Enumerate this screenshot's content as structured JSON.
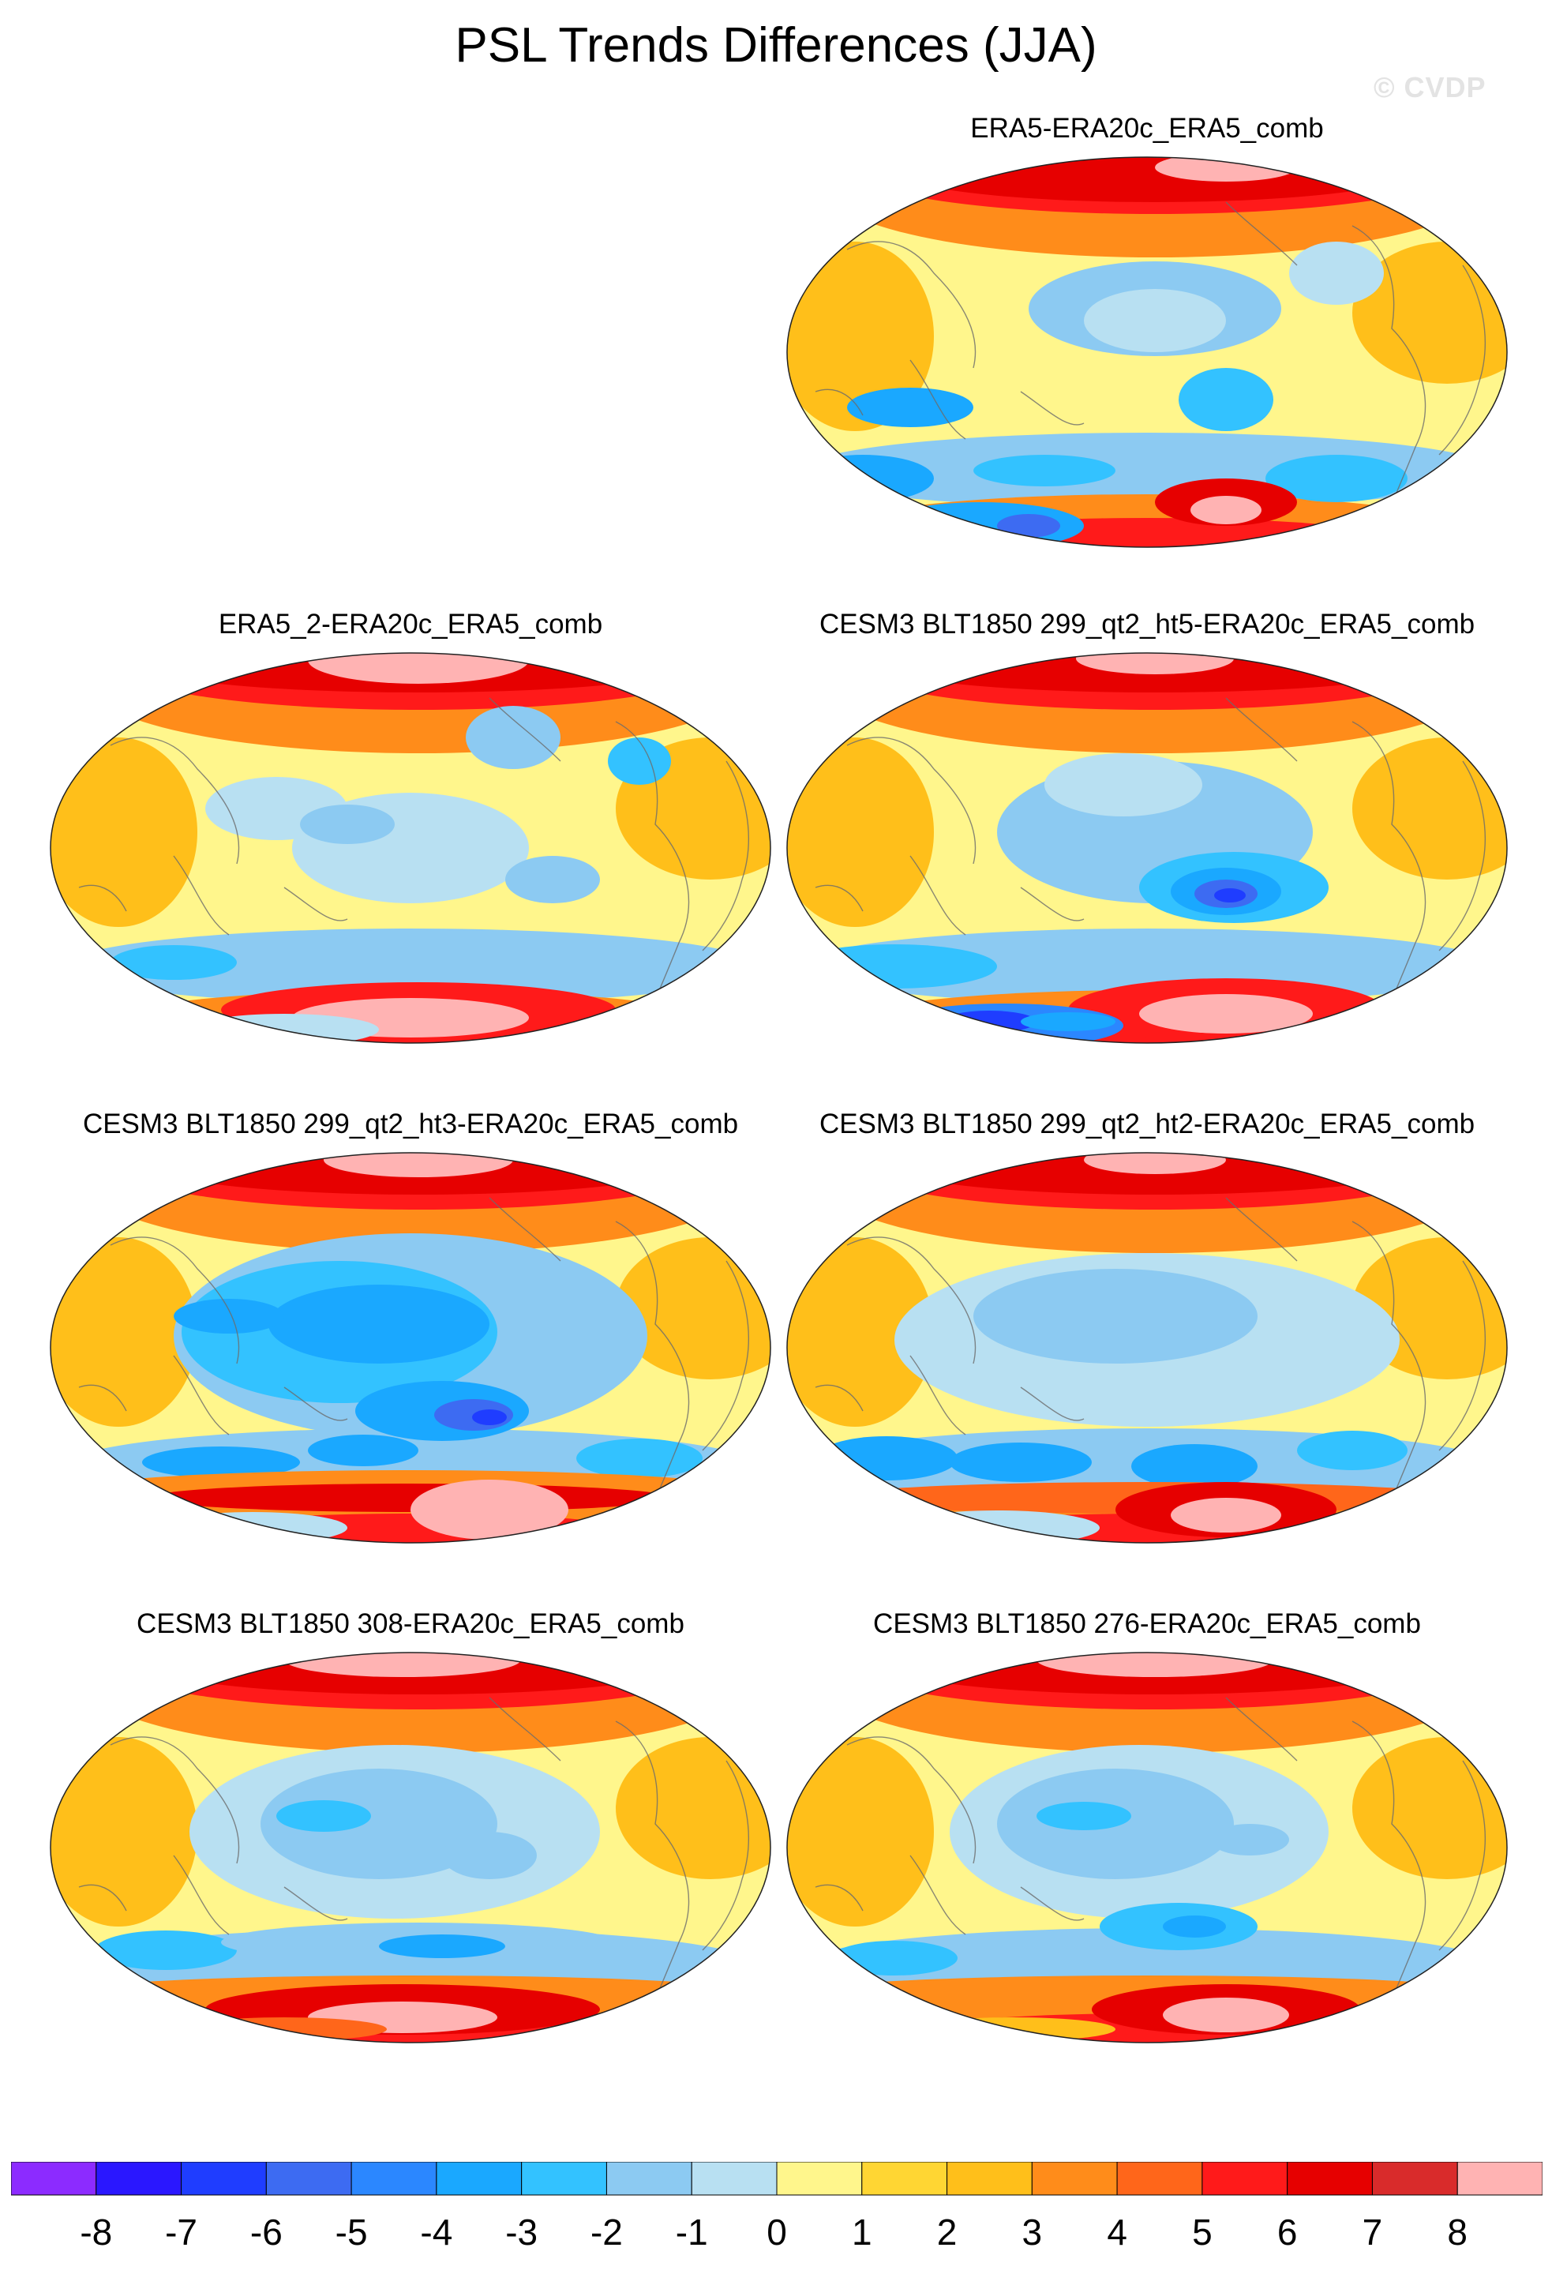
{
  "title": "PSL Trends Differences (JJA)",
  "watermark": "© CVDP",
  "panels": [
    {
      "title": "ERA5-ERA20c_ERA5_comb",
      "pattern": "era5"
    },
    {
      "title": "ERA5_2-ERA20c_ERA5_comb",
      "pattern": "era5_2"
    },
    {
      "title": "CESM3 BLT1850 299_qt2_ht5-ERA20c_ERA5_comb",
      "pattern": "ht5"
    },
    {
      "title": "CESM3 BLT1850 299_qt2_ht3-ERA20c_ERA5_comb",
      "pattern": "ht3"
    },
    {
      "title": "CESM3 BLT1850 299_qt2_ht2-ERA20c_ERA5_comb",
      "pattern": "ht2"
    },
    {
      "title": "CESM3 BLT1850 308-ERA20c_ERA5_comb",
      "pattern": "b308"
    },
    {
      "title": "CESM3 BLT1850 276-ERA20c_ERA5_comb",
      "pattern": "b276"
    }
  ],
  "colorbar": {
    "labels": [
      "-8",
      "-7",
      "-6",
      "-5",
      "-4",
      "-3",
      "-2",
      "-1",
      "0",
      "1",
      "2",
      "3",
      "4",
      "5",
      "6",
      "7",
      "8"
    ],
    "colors": [
      "#8c2bff",
      "#2a17ff",
      "#1f3dff",
      "#3d6bf2",
      "#2b87ff",
      "#1aa8ff",
      "#33c2ff",
      "#8ccaf2",
      "#b8e0f2",
      "#fff68c",
      "#ffd633",
      "#ffbf1a",
      "#ff8c1a",
      "#ff661a",
      "#ff1a1a",
      "#e60000",
      "#d92b2b",
      "#ffb3b3"
    ]
  }
}
